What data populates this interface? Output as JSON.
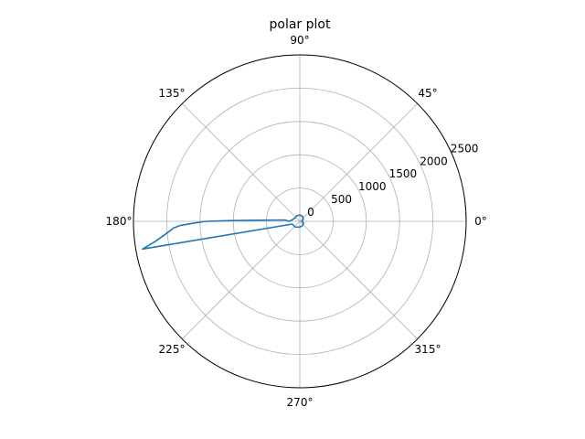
{
  "chart_data": {
    "type": "line",
    "projection": "polar",
    "title": "polar plot",
    "r_range": [
      0,
      2500
    ],
    "r_ticks": [
      0,
      500,
      1000,
      1500,
      2000,
      2500
    ],
    "r_tick_labels": [
      "0",
      "500",
      "1000",
      "1500",
      "2000",
      "2500"
    ],
    "theta_ticks_deg": [
      0,
      45,
      90,
      135,
      180,
      225,
      270,
      315
    ],
    "theta_tick_labels": [
      "0°",
      "45°",
      "90°",
      "135°",
      "180°",
      "225°",
      "270°",
      "315°"
    ],
    "r_label_angle_deg": 22.5,
    "grid": true,
    "series_color": "#1f77b4",
    "series": [
      {
        "theta_deg": [
          0,
          30,
          60,
          90,
          120,
          150,
          170,
          180,
          175,
          177,
          178,
          179,
          179.5,
          180,
          180.2,
          181,
          182,
          183,
          185,
          188,
          190,
          200,
          230,
          260,
          290,
          320,
          340,
          350
        ],
        "r": [
          30,
          60,
          85,
          95,
          95,
          90,
          120,
          160,
          220,
          360,
          500,
          800,
          1100,
          1400,
          1450,
          1600,
          1800,
          1900,
          2000,
          2200,
          2400,
          120,
          110,
          90,
          80,
          70,
          55,
          40
        ]
      }
    ]
  }
}
